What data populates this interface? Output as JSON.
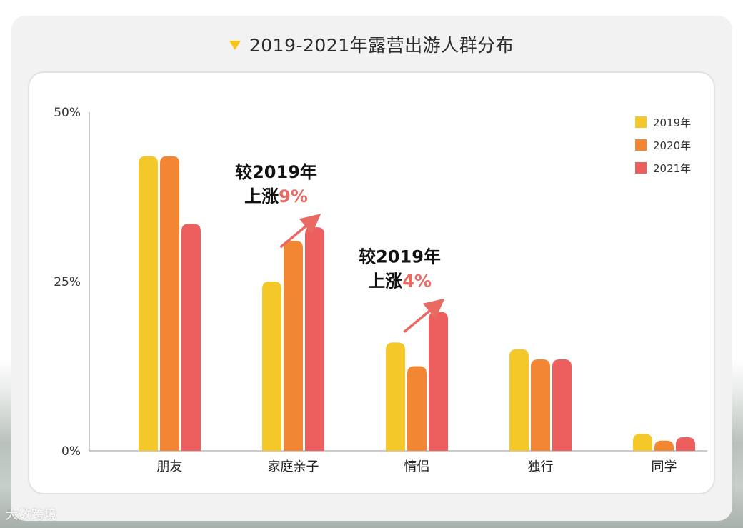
{
  "page": {
    "title": "2019-2021年露营出游人群分布",
    "watermark": "大数跨境"
  },
  "colors": {
    "2019": "#f5c82a",
    "2020": "#f38632",
    "2021": "#ec5f5e",
    "title_marker": "#f5c518",
    "highlight": "#e96a62"
  },
  "chart_data": {
    "type": "bar",
    "title": "2019-2021年露营出游人群分布",
    "xlabel": "",
    "ylabel": "",
    "ylim": [
      0,
      50
    ],
    "yticks": [
      "0%",
      "25%",
      "50%"
    ],
    "categories": [
      "朋友",
      "家庭亲子",
      "情侣",
      "独行",
      "同学"
    ],
    "series": [
      {
        "name": "2019年",
        "values": [
          43.5,
          25,
          16,
          15,
          2.5
        ]
      },
      {
        "name": "2020年",
        "values": [
          43.5,
          31,
          12.5,
          13.5,
          1.5
        ]
      },
      {
        "name": "2021年",
        "values": [
          33.5,
          33,
          20.5,
          13.5,
          2
        ]
      }
    ],
    "legend_position": "top-right",
    "annotations": [
      {
        "category": "家庭亲子",
        "line1": "较2019年",
        "line2_prefix": "上涨",
        "line2_value": "9%"
      },
      {
        "category": "情侣",
        "line1": "较2019年",
        "line2_prefix": "上涨",
        "line2_value": "4%"
      }
    ]
  }
}
